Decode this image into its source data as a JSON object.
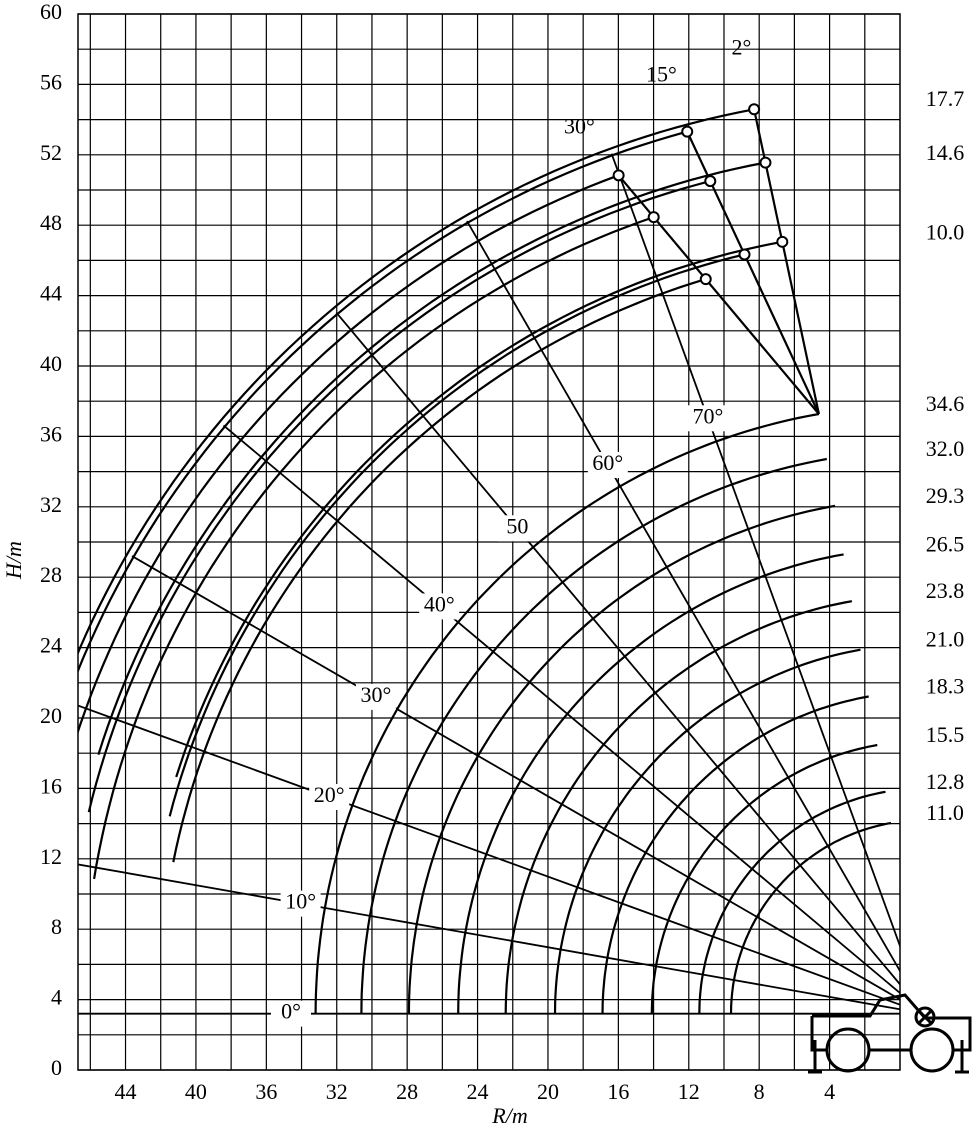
{
  "chart_data": {
    "type": "crane-range",
    "x_label": "R/m",
    "y_label": "H/m",
    "xlim": [
      46.7,
      0
    ],
    "ylim": [
      0,
      60
    ],
    "xticks": [
      44,
      40,
      36,
      32,
      28,
      24,
      20,
      16,
      12,
      8,
      4
    ],
    "yticks": [
      0,
      4,
      8,
      12,
      16,
      20,
      24,
      28,
      32,
      36,
      40,
      44,
      48,
      52,
      56,
      60
    ],
    "grid": true,
    "boom_lengths": {
      "values": [
        11,
        12.8,
        15.5,
        18.3,
        21,
        23.8,
        26.5,
        29.3,
        32,
        34.6
      ],
      "value_labels": [
        "11.0",
        "12.8",
        "15.5",
        "18.3",
        "21.0",
        "23.8",
        "26.5",
        "29.3",
        "32.0",
        "34.6"
      ]
    },
    "jib_lengths": {
      "values": [
        17.7,
        14.6,
        10
      ],
      "value_labels": [
        "17.7",
        "14.6",
        "10.0"
      ]
    },
    "jib_offsets": {
      "values": [
        2,
        15,
        30
      ],
      "value_labels": [
        "2°",
        "15°",
        "30°"
      ]
    },
    "boom_angles": {
      "values": [
        0,
        10,
        20,
        30,
        40,
        50,
        60,
        70
      ],
      "value_labels": [
        "0°",
        "10°",
        "20°",
        "30°",
        "40°",
        "50",
        "60°",
        "70°"
      ]
    },
    "color": "#000000"
  }
}
